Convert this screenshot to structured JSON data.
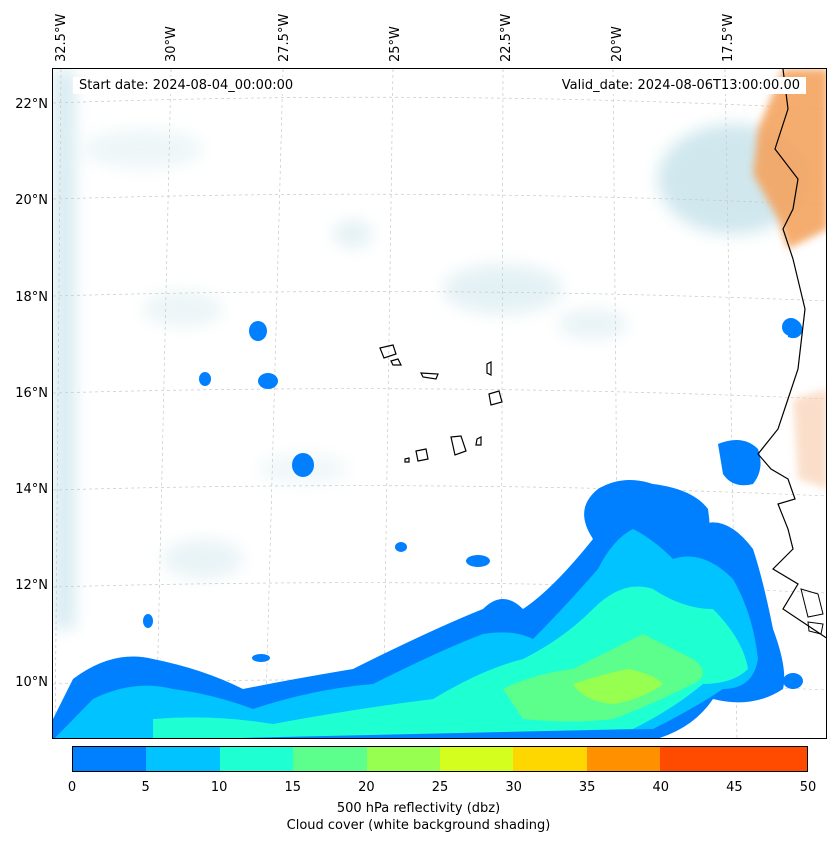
{
  "map": {
    "start_date": "Start date: 2024-08-04_00:00:00",
    "valid_date": "Valid_date: 2024-08-06T13:00:00.00",
    "lon_labels": [
      "32.5°W",
      "30°W",
      "27.5°W",
      "25°W",
      "22.5°W",
      "20°W",
      "17.5°W"
    ],
    "lat_labels": [
      "22°N",
      "20°N",
      "18°N",
      "16°N",
      "14°N",
      "12°N",
      "10°N"
    ],
    "colors": {
      "land_orange": "#f4a460",
      "cloud_blue": "#b7dce6",
      "coastline": "#000000"
    }
  },
  "colorbar": {
    "ticks": [
      "0",
      "5",
      "10",
      "15",
      "20",
      "25",
      "30",
      "35",
      "40",
      "45",
      "50"
    ],
    "colors": [
      "#0080ff",
      "#00c3ff",
      "#1effd2",
      "#5cff8c",
      "#96ff50",
      "#d4ff1e",
      "#ffd700",
      "#ff9100",
      "#ff4b00",
      "#ff4b00"
    ],
    "label": "500 hPa reflectivity (dbz)",
    "sublabel": "Cloud cover (white background shading)"
  }
}
